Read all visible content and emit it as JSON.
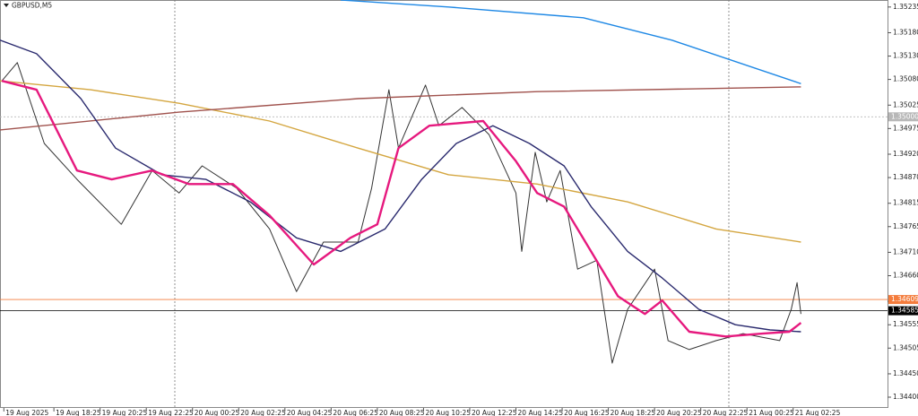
{
  "chart_data": {
    "type": "line",
    "title": "GBPUSD,M5",
    "xlim": [
      -2,
      459
    ],
    "ylim": [
      1.34377,
      1.3525
    ],
    "xticks": [
      {
        "value": 0,
        "label": "19 Aug 2025"
      },
      {
        "value": 26,
        "label": "19 Aug 18:25"
      },
      {
        "value": 50,
        "label": "19 Aug 20:25"
      },
      {
        "value": 74,
        "label": "19 Aug 22:25"
      },
      {
        "value": 98,
        "label": "20 Aug 00:25"
      },
      {
        "value": 122,
        "label": "20 Aug 02:25"
      },
      {
        "value": 146,
        "label": "20 Aug 04:25"
      },
      {
        "value": 170,
        "label": "20 Aug 06:25"
      },
      {
        "value": 194,
        "label": "20 Aug 08:25"
      },
      {
        "value": 218,
        "label": "20 Aug 10:25"
      },
      {
        "value": 242,
        "label": "20 Aug 12:25"
      },
      {
        "value": 266,
        "label": "20 Aug 14:25"
      },
      {
        "value": 290,
        "label": "20 Aug 16:25"
      },
      {
        "value": 314,
        "label": "20 Aug 18:25"
      },
      {
        "value": 338,
        "label": "20 Aug 20:25"
      },
      {
        "value": 362,
        "label": "20 Aug 22:25"
      },
      {
        "value": 386,
        "label": "21 Aug 00:25"
      },
      {
        "value": 410,
        "label": "21 Aug 02:25"
      }
    ],
    "yticks": [
      1.35235,
      {
        "value": 1.3518,
        "label": "1.35180"
      },
      {
        "value": 1.3513,
        "label": "1.35130"
      },
      {
        "value": 1.3508,
        "label": "1.35080"
      },
      1.35025,
      1.34975,
      {
        "value": 1.3492,
        "label": "1.34920"
      },
      {
        "value": 1.3487,
        "label": "1.34870"
      },
      1.34815,
      1.34765,
      {
        "value": 1.3471,
        "label": "1.34710"
      },
      {
        "value": 1.3466,
        "label": "1.34660"
      },
      1.34605,
      1.34555,
      1.34505,
      {
        "value": 1.3445,
        "label": "1.34450"
      },
      {
        "value": 1.344,
        "label": "1.34400"
      }
    ],
    "price_lines": [
      {
        "value": 1.35,
        "label": "1.35000",
        "color": "#b8b8b8"
      },
      {
        "value": 1.34609,
        "label": "1.34609",
        "color": "#f47c3c"
      },
      {
        "value": 1.34585,
        "label": "1.34585",
        "color": "#000000"
      }
    ],
    "series": [
      {
        "color": "#333333",
        "x": [
          -1,
          7,
          21,
          38,
          61,
          77,
          91,
          103,
          121,
          138,
          152,
          166,
          184,
          191,
          200,
          205,
          219,
          226,
          238,
          252,
          266,
          269,
          276,
          282,
          289,
          298,
          308,
          316,
          324,
          338,
          345,
          356,
          370,
          384,
          403,
          409,
          412,
          414
        ],
        "values": [
          1.35077,
          1.35116,
          1.34943,
          1.34866,
          1.3477,
          1.34885,
          1.34837,
          1.34895,
          1.34847,
          1.3476,
          1.34626,
          1.34732,
          1.34732,
          1.34847,
          1.35058,
          1.34933,
          1.35068,
          1.34981,
          1.3502,
          1.34962,
          1.34837,
          1.34712,
          1.34924,
          1.34818,
          1.34885,
          1.34674,
          1.34693,
          1.34473,
          1.34588,
          1.34674,
          1.34521,
          1.34502,
          1.34521,
          1.34536,
          1.34521,
          1.34588,
          1.34645,
          1.34578
        ]
      },
      {
        "color": "#d4a640",
        "x": [
          -2,
          45,
          91,
          138,
          184,
          231,
          277,
          324,
          370,
          414
        ],
        "values": [
          1.35077,
          1.35058,
          1.35029,
          1.34991,
          1.34933,
          1.34876,
          1.34856,
          1.34818,
          1.3476,
          1.34732
        ]
      },
      {
        "color": "#a0524d",
        "x": [
          -2,
          91,
          184,
          277,
          414
        ],
        "values": [
          1.34972,
          1.3501,
          1.35039,
          1.35054,
          1.35064
        ]
      },
      {
        "color": "#1e88e5",
        "x": [
          175,
          231,
          301,
          347,
          414
        ],
        "values": [
          1.3525,
          1.35235,
          1.35212,
          1.35164,
          1.35071
        ]
      },
      {
        "color": "#2a2a6e",
        "x": [
          -2,
          17,
          40,
          58,
          82,
          105,
          128,
          152,
          175,
          198,
          217,
          235,
          254,
          273,
          291,
          305,
          324,
          342,
          361,
          380,
          398,
          414
        ],
        "values": [
          1.35164,
          1.35135,
          1.35039,
          1.34933,
          1.34876,
          1.34866,
          1.34818,
          1.34741,
          1.34712,
          1.3476,
          1.34866,
          1.34943,
          1.34981,
          1.34943,
          1.34895,
          1.34808,
          1.34712,
          1.34655,
          1.34588,
          1.34555,
          1.34544,
          1.3454
        ]
      },
      {
        "color": "#e6197e",
        "x": [
          -1,
          17,
          38,
          56,
          77,
          96,
          119,
          138,
          161,
          180,
          194,
          205,
          221,
          249,
          266,
          277,
          291,
          305,
          319,
          333,
          342,
          356,
          375,
          394,
          408,
          414
        ],
        "values": [
          1.35077,
          1.35058,
          1.34885,
          1.34866,
          1.34885,
          1.34856,
          1.34856,
          1.34789,
          1.34684,
          1.34741,
          1.3477,
          1.34933,
          1.34981,
          1.34991,
          1.34905,
          1.34837,
          1.34808,
          1.34712,
          1.34616,
          1.34578,
          1.34607,
          1.3454,
          1.3453,
          1.34536,
          1.3454,
          1.34559
        ]
      }
    ]
  }
}
